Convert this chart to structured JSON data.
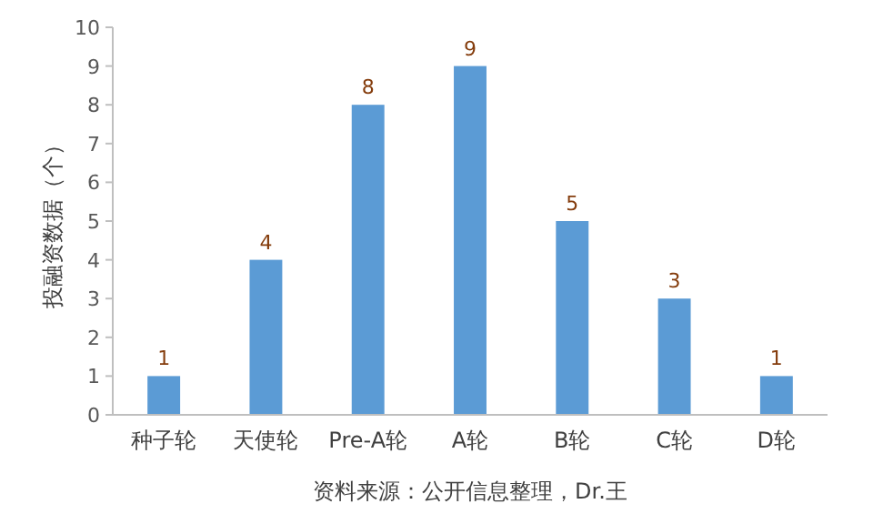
{
  "chart_data": {
    "type": "bar",
    "ylabel": "投融资数据（个）",
    "annotations": [
      "资料来源：公开信息整理，Dr.王"
    ],
    "categories": [
      "种子轮",
      "天使轮",
      "Pre-A轮",
      "A轮",
      "B轮",
      "C轮",
      "D轮"
    ],
    "values": [
      1,
      4,
      8,
      9,
      5,
      3,
      1
    ],
    "color": "#5b9bd5",
    "ylim": [
      0,
      10
    ],
    "yticks": [
      0,
      1,
      2,
      3,
      4,
      5,
      6,
      7,
      8,
      9,
      10
    ],
    "data_labels": true,
    "grid": false
  }
}
